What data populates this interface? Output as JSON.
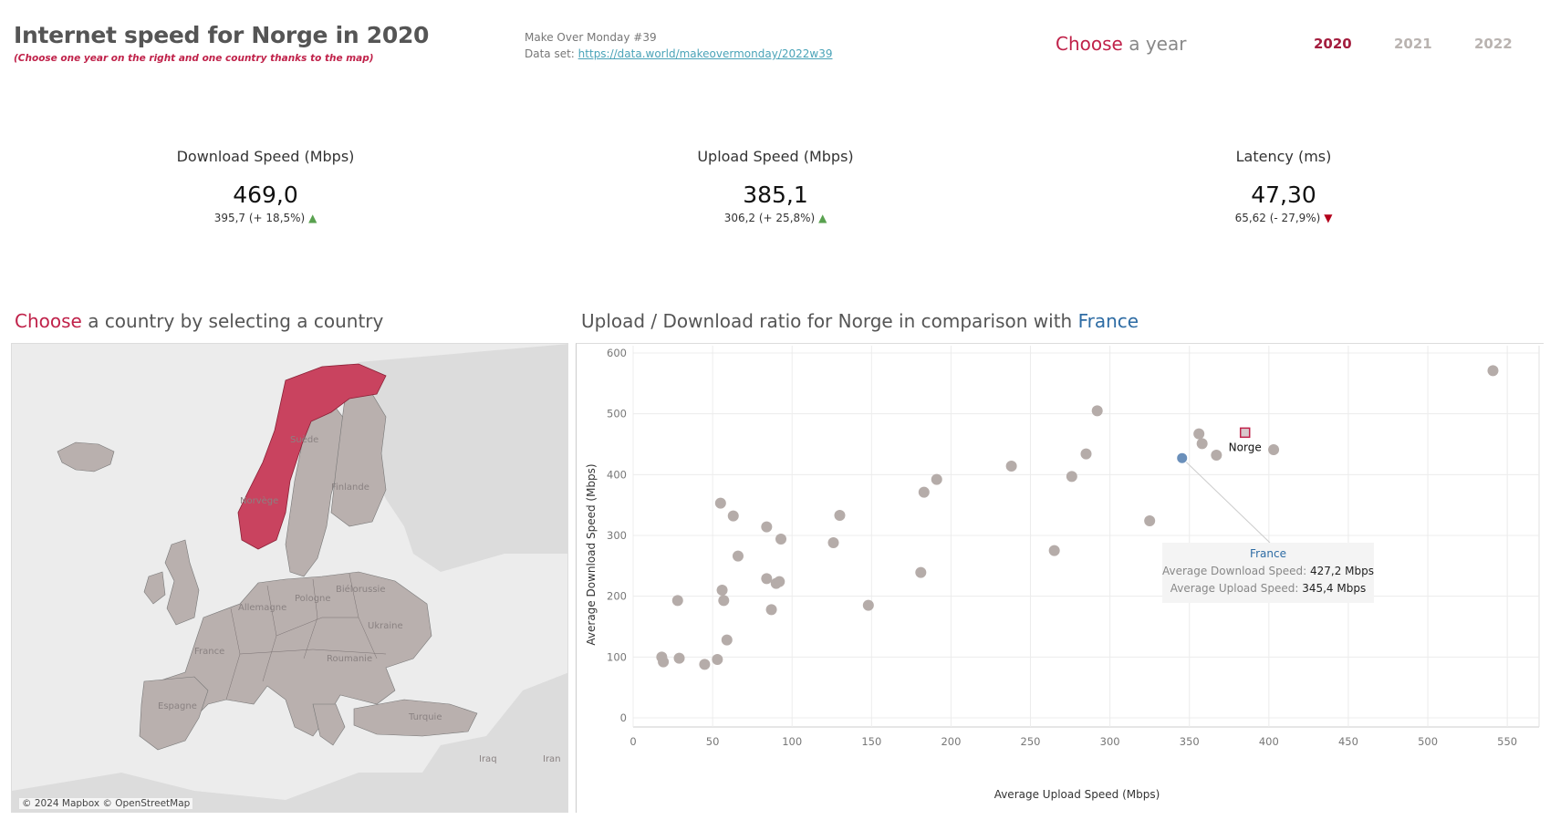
{
  "header": {
    "title": "Internet speed for Norge in 2020",
    "subtitle": "(Choose one year on the right and one country thanks to the map)",
    "source_line1": "Make Over Monday #39",
    "source_prefix": "Data set: ",
    "source_link": "https://data.world/makeovermonday/2022w39"
  },
  "year_picker": {
    "choose_word": "Choose",
    "rest": " a year",
    "years": [
      "2020",
      "2021",
      "2022"
    ],
    "selected": "2020"
  },
  "kpis": {
    "download": {
      "label": "Download Speed (Mbps)",
      "value": "469,0",
      "sub": "395,7  (+ 18,5%)",
      "trend": "▲"
    },
    "upload": {
      "label": "Upload Speed (Mbps)",
      "value": "385,1",
      "sub": "306,2 (+ 25,8%)",
      "trend": "▲"
    },
    "latency": {
      "label": "Latency (ms)",
      "value": "47,30",
      "sub": "65,62  (- 27,9%)",
      "trend": "▼"
    }
  },
  "map_section": {
    "choose_word": "Choose",
    "rest": " a country by selecting a country",
    "credit": "© 2024 Mapbox © OpenStreetMap",
    "labels": [
      "Suède",
      "Finlande",
      "Norvège",
      "Biélorussie",
      "Pologne",
      "Allemagne",
      "Ukraine",
      "France",
      "Roumanie",
      "Espagne",
      "Turquie",
      "Iraq",
      "Iran"
    ],
    "colors": {
      "selected": "#c9435f",
      "country": "#b9b0ae",
      "land": "#d9d9d9",
      "water": "#ececec"
    }
  },
  "chart_section": {
    "title_prefix": "Upload / Download ratio for Norge in comparison with ",
    "compare_country": "France"
  },
  "chart_data": {
    "type": "scatter",
    "xlabel": "Average Upload Speed (Mbps)",
    "ylabel": "Average Download Speed (Mbps)",
    "xlim": [
      0,
      570
    ],
    "ylim": [
      -15,
      612
    ],
    "xticks": [
      0,
      50,
      100,
      150,
      200,
      250,
      300,
      350,
      400,
      450,
      500,
      550
    ],
    "yticks": [
      0,
      100,
      200,
      300,
      400,
      500,
      600
    ],
    "grid": true,
    "highlight": {
      "name": "Norge",
      "x": 385,
      "y": 469,
      "color": "#c0224a"
    },
    "compare": {
      "name": "France",
      "x": 345.4,
      "y": 427.2,
      "color": "#6a8fba"
    },
    "tooltip": {
      "title": "France",
      "line1_label": "Average Download Speed: ",
      "line1_value": "427,2 Mbps",
      "line2_label": "Average Upload Speed: ",
      "line2_value": "345,4 Mbps"
    },
    "colors": {
      "point": "#b5aca9",
      "grid": "#ececec",
      "axis": "#999999"
    },
    "points": [
      [
        18,
        100
      ],
      [
        19,
        92
      ],
      [
        28,
        193
      ],
      [
        29,
        98
      ],
      [
        45,
        88
      ],
      [
        53,
        96
      ],
      [
        55,
        353
      ],
      [
        56,
        210
      ],
      [
        57,
        193
      ],
      [
        59,
        128
      ],
      [
        63,
        332
      ],
      [
        66,
        266
      ],
      [
        84,
        229
      ],
      [
        84,
        314
      ],
      [
        87,
        178
      ],
      [
        90,
        221
      ],
      [
        92,
        224
      ],
      [
        93,
        294
      ],
      [
        126,
        288
      ],
      [
        130,
        333
      ],
      [
        148,
        185
      ],
      [
        181,
        239
      ],
      [
        183,
        371
      ],
      [
        191,
        392
      ],
      [
        238,
        414
      ],
      [
        265,
        275
      ],
      [
        276,
        397
      ],
      [
        285,
        434
      ],
      [
        292,
        505
      ],
      [
        325,
        324
      ],
      [
        356,
        467
      ],
      [
        358,
        451
      ],
      [
        367,
        432
      ],
      [
        403,
        441
      ],
      [
        541,
        571
      ]
    ]
  }
}
